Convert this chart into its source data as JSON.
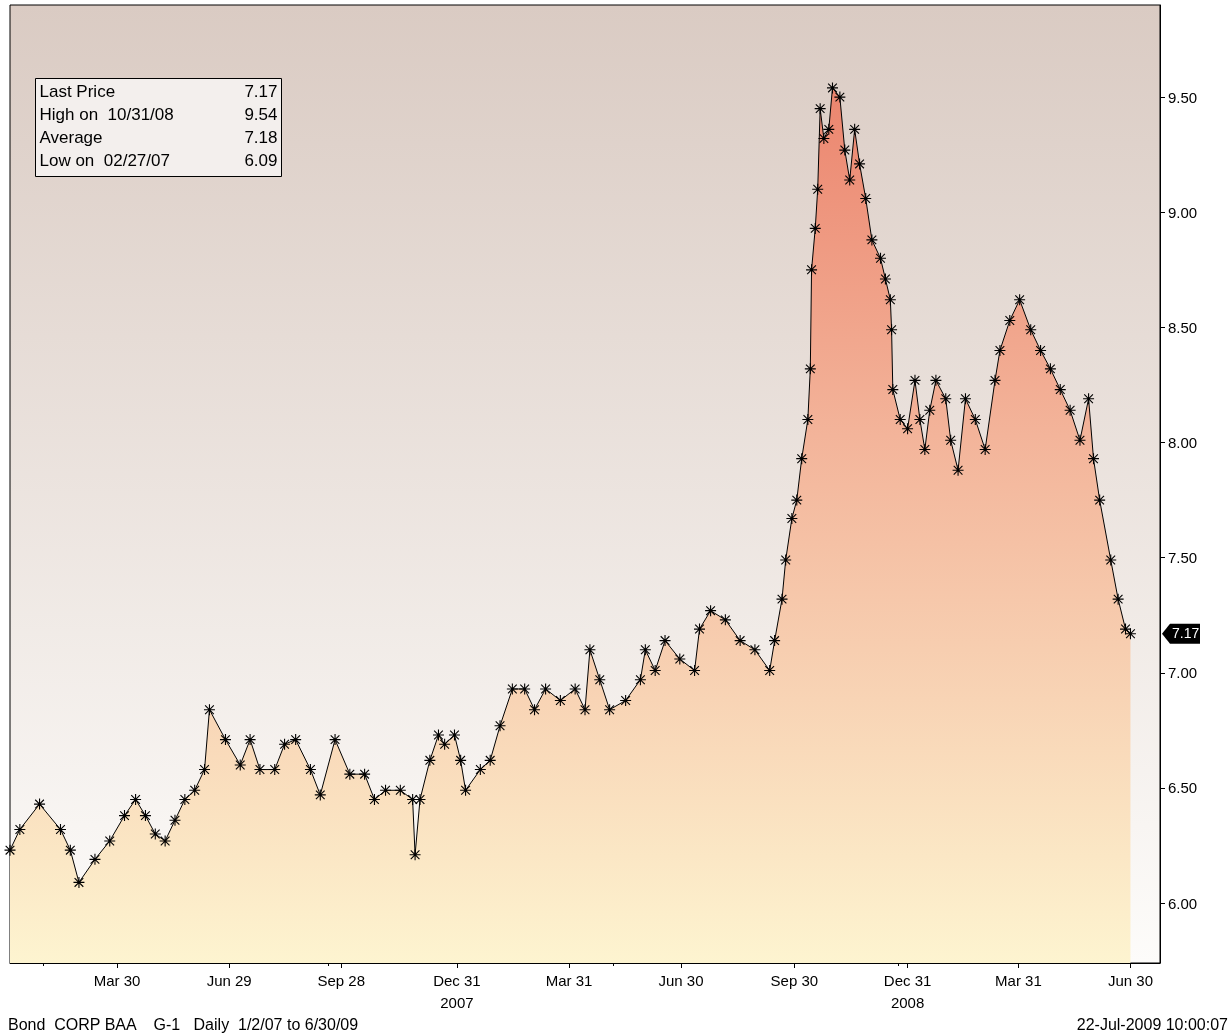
{
  "chart_data": {
    "type": "area",
    "x": [
      "2007-01-02",
      "2007-01-10",
      "2007-01-26",
      "2007-02-12",
      "2007-02-20",
      "2007-02-27",
      "2007-03-12",
      "2007-03-24",
      "2007-04-05",
      "2007-04-14",
      "2007-04-22",
      "2007-04-30",
      "2007-05-08",
      "2007-05-16",
      "2007-05-24",
      "2007-06-01",
      "2007-06-09",
      "2007-06-13",
      "2007-06-26",
      "2007-07-08",
      "2007-07-16",
      "2007-07-24",
      "2007-08-05",
      "2007-08-13",
      "2007-08-22",
      "2007-09-03",
      "2007-09-11",
      "2007-09-23",
      "2007-10-05",
      "2007-10-17",
      "2007-10-25",
      "2007-11-03",
      "2007-11-15",
      "2007-11-25",
      "2007-11-27",
      "2007-12-01",
      "2007-12-09",
      "2007-12-16",
      "2007-12-21",
      "2007-12-29",
      "2008-01-03",
      "2008-01-07",
      "2008-01-19",
      "2008-01-27",
      "2008-02-04",
      "2008-02-14",
      "2008-02-24",
      "2008-03-03",
      "2008-03-12",
      "2008-03-24",
      "2008-04-05",
      "2008-04-13",
      "2008-04-17",
      "2008-04-25",
      "2008-05-03",
      "2008-05-16",
      "2008-05-28",
      "2008-06-01",
      "2008-06-09",
      "2008-06-17",
      "2008-06-29",
      "2008-07-11",
      "2008-07-15",
      "2008-07-24",
      "2008-08-05",
      "2008-08-17",
      "2008-08-29",
      "2008-09-10",
      "2008-09-14",
      "2008-09-20",
      "2008-09-23",
      "2008-09-28",
      "2008-10-02",
      "2008-10-06",
      "2008-10-11",
      "2008-10-13",
      "2008-10-14",
      "2008-10-17",
      "2008-10-19",
      "2008-10-21",
      "2008-10-24",
      "2008-10-28",
      "2008-10-31",
      "2008-11-06",
      "2008-11-10",
      "2008-11-14",
      "2008-11-18",
      "2008-11-22",
      "2008-11-27",
      "2008-12-02",
      "2008-12-09",
      "2008-12-13",
      "2008-12-17",
      "2008-12-18",
      "2008-12-19",
      "2008-12-25",
      "2008-12-31",
      "2009-01-06",
      "2009-01-10",
      "2009-01-14",
      "2009-01-18",
      "2009-01-23",
      "2009-01-31",
      "2009-02-04",
      "2009-02-10",
      "2009-02-16",
      "2009-02-24",
      "2009-03-04",
      "2009-03-12",
      "2009-03-16",
      "2009-03-24",
      "2009-04-01",
      "2009-04-10",
      "2009-04-18",
      "2009-04-26",
      "2009-05-04",
      "2009-05-12",
      "2009-05-20",
      "2009-05-27",
      "2009-05-31",
      "2009-06-05",
      "2009-06-14",
      "2009-06-20",
      "2009-06-26",
      "2009-06-30"
    ],
    "series": [
      {
        "color": "#000000",
        "values": [
          6.23,
          6.32,
          6.43,
          6.32,
          6.23,
          6.09,
          6.19,
          6.27,
          6.38,
          6.45,
          6.38,
          6.3,
          6.27,
          6.36,
          6.45,
          6.49,
          6.58,
          6.84,
          6.71,
          6.6,
          6.71,
          6.58,
          6.58,
          6.69,
          6.71,
          6.58,
          6.47,
          6.71,
          6.56,
          6.56,
          6.45,
          6.49,
          6.49,
          6.45,
          6.21,
          6.45,
          6.62,
          6.73,
          6.69,
          6.73,
          6.62,
          6.49,
          6.58,
          6.62,
          6.77,
          6.93,
          6.93,
          6.84,
          6.93,
          6.88,
          6.93,
          6.84,
          7.1,
          6.97,
          6.84,
          6.88,
          6.97,
          7.1,
          7.01,
          7.14,
          7.06,
          7.01,
          7.19,
          7.27,
          7.23,
          7.14,
          7.1,
          7.01,
          7.14,
          7.32,
          7.49,
          7.67,
          7.75,
          7.93,
          8.1,
          8.32,
          8.75,
          8.93,
          9.1,
          9.45,
          9.32,
          9.36,
          9.54,
          9.5,
          9.27,
          9.14,
          9.36,
          9.21,
          9.06,
          8.88,
          8.8,
          8.71,
          8.62,
          8.49,
          8.23,
          8.1,
          8.06,
          8.27,
          8.1,
          7.97,
          8.14,
          8.27,
          8.19,
          8.01,
          7.88,
          8.19,
          8.1,
          7.97,
          8.27,
          8.4,
          8.53,
          8.62,
          8.49,
          8.4,
          8.32,
          8.23,
          8.14,
          8.01,
          8.19,
          7.93,
          7.75,
          7.49,
          7.32,
          7.19,
          7.17
        ]
      }
    ],
    "xlim": [
      "2007-01-02",
      "2009-07-24"
    ],
    "xticks": [
      {
        "value": "2007-03-30",
        "label": "Mar 30"
      },
      {
        "value": "2007-06-29",
        "label": "Jun 29"
      },
      {
        "value": "2007-09-28",
        "label": "Sep 28"
      },
      {
        "value": "2007-12-31",
        "label": "Dec 31\n2007"
      },
      {
        "value": "2008-03-31",
        "label": "Mar 31"
      },
      {
        "value": "2008-06-30",
        "label": "Jun 30"
      },
      {
        "value": "2008-09-30",
        "label": "Sep 30"
      },
      {
        "value": "2008-12-31",
        "label": "Dec 31\n2008"
      },
      {
        "value": "2009-03-31",
        "label": "Mar 31"
      },
      {
        "value": "2009-06-30",
        "label": "Jun 30"
      }
    ],
    "ylim": [
      5.74,
      9.9
    ],
    "yticks": [
      {
        "value": 6,
        "label": "6.00"
      },
      {
        "value": 6.5,
        "label": "6.50"
      },
      {
        "value": 7,
        "label": "7.00"
      },
      {
        "value": 7.5,
        "label": "7.50"
      },
      {
        "value": 8,
        "label": "8.00"
      },
      {
        "value": 8.5,
        "label": "8.50"
      },
      {
        "value": 9,
        "label": "9.00"
      },
      {
        "value": 9.5,
        "label": "9.50"
      }
    ],
    "marker": "star",
    "annotations": [
      {
        "text": "7.17",
        "x": "2009-06-30",
        "y": 7.17
      },
      "Last Price",
      "7.17",
      "High on  10/31/08",
      "9.54",
      "Average",
      "7.18",
      "Low on  02/27/07",
      "6.09",
      "Bond  CORP BAA    G-1   Daily  1/2/07 to 6/30/09",
      "22-Jul-2009 10:00:07"
    ]
  }
}
